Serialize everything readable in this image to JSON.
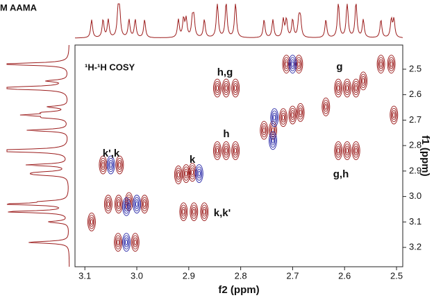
{
  "chart_data": {
    "type": "contour",
    "title": "M AAMA",
    "subtitle": "¹H-¹H COSY",
    "x_label": "f2 (ppm)",
    "y_label": "f1 (ppm)",
    "xlim": [
      3.119,
      2.488
    ],
    "ylim": [
      2.405,
      3.276
    ],
    "xticks": [
      3.1,
      {
        "value": 3,
        "label": "3.0"
      },
      2.9,
      2.8,
      2.7,
      2.6,
      2.5
    ],
    "yticks": [
      2.5,
      2.6,
      2.7,
      2.8,
      2.9,
      {
        "value": 3,
        "label": "3.0"
      },
      3.1,
      3.2
    ],
    "annotations": [
      "h,g",
      "g",
      "h",
      "k',k",
      "k",
      "g,h",
      "k,k'"
    ],
    "series": [
      {
        "color": "#9b1b1b",
        "x": [
          2.712,
          2.688,
          2.53,
          2.51,
          2.564,
          2.612,
          2.595,
          2.578,
          2.845,
          2.828,
          2.81,
          2.636,
          2.718,
          2.7,
          2.685,
          2.755,
          2.738,
          2.845,
          2.828,
          2.81,
          2.612,
          2.595,
          2.578,
          2.505,
          2.92,
          2.905,
          2.893,
          3.065,
          3.033,
          3.055,
          3.035,
          3.015,
          2.985,
          2.91,
          2.89,
          2.87,
          3.087,
          3.036,
          3.003
        ],
        "y": [
          2.48,
          2.48,
          2.48,
          2.48,
          2.546,
          2.574,
          2.574,
          2.574,
          2.574,
          2.574,
          2.574,
          2.648,
          2.69,
          2.68,
          2.67,
          2.74,
          2.74,
          2.82,
          2.82,
          2.82,
          2.82,
          2.82,
          2.82,
          2.68,
          2.915,
          2.91,
          2.905,
          2.876,
          2.876,
          3.03,
          3.03,
          3.02,
          3.03,
          3.06,
          3.06,
          3.06,
          3.1,
          3.18,
          3.18
        ]
      },
      {
        "color": "#2b2ba8",
        "x": [
          2.7,
          2.735,
          2.738,
          2.88,
          3.05,
          3.02,
          3.0,
          3.02
        ],
        "y": [
          2.48,
          2.69,
          2.78,
          2.91,
          2.876,
          3.04,
          3.03,
          3.18
        ]
      }
    ]
  }
}
